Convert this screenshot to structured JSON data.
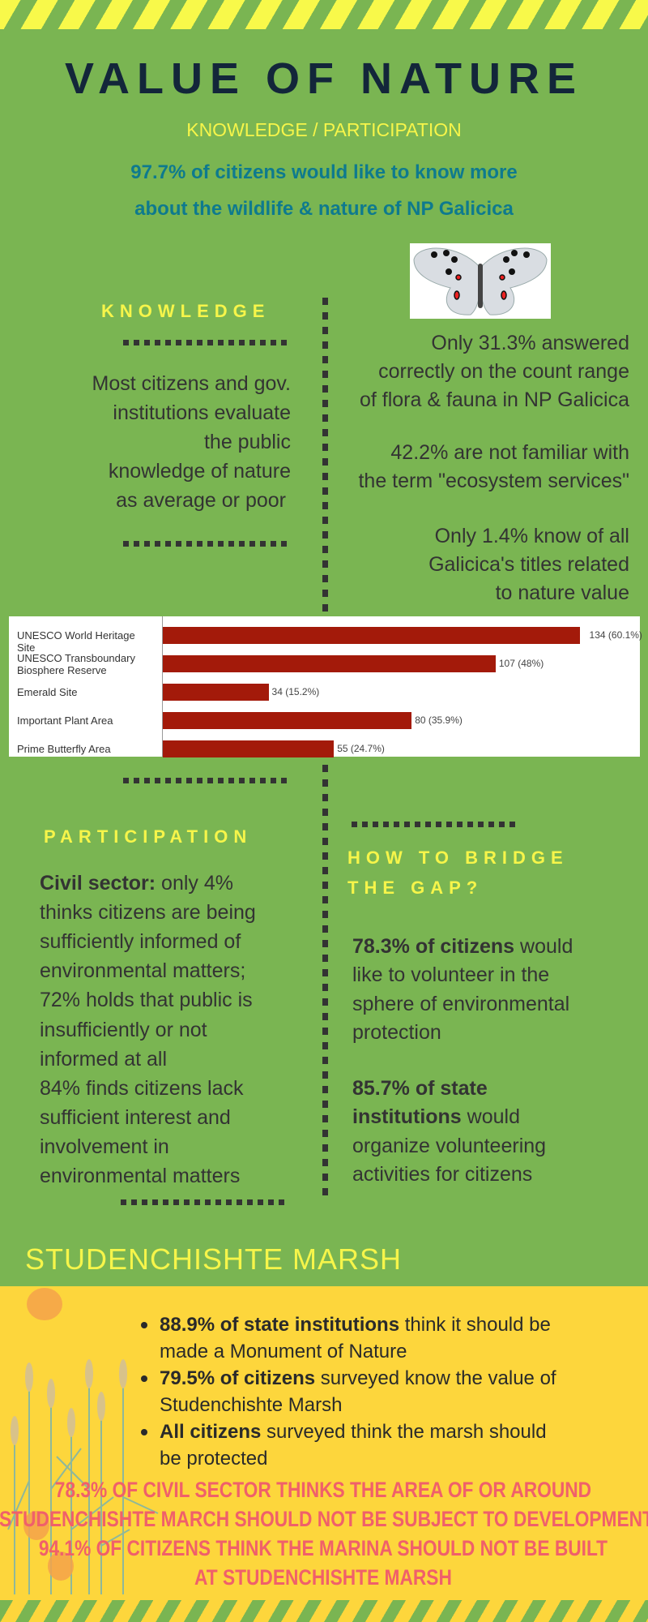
{
  "header": {
    "title": "VALUE OF NATURE",
    "subtitle": "KNOWLEDGE / PARTICIPATION",
    "lead": [
      "97.7% of citizens  would like to know more",
      "about the wildlife & nature of NP Galicica"
    ]
  },
  "knowledge": {
    "heading": "KNOWLEDGE",
    "left_lines": [
      "Most citizens and gov.",
      "institutions evaluate",
      "the public",
      "knowledge of nature",
      "as average or poor"
    ],
    "right_lines": [
      "Only 31.3% answered",
      "correctly on the count range",
      "of flora & fauna in NP Galicica",
      "42.2% are not familiar with",
      "the term \"ecosystem services\"",
      "Only 1.4% know of all",
      "Galicica's titles related",
      "to nature value"
    ]
  },
  "chart_data": {
    "type": "bar",
    "orientation": "horizontal",
    "categories": [
      "UNESCO World Heritage Site",
      "UNESCO Transboundary Biosphere Reserve",
      "Emerald Site",
      "Important Plant Area",
      "Prime Butterfly Area"
    ],
    "values": [
      134,
      107,
      34,
      80,
      55
    ],
    "labels": [
      "134 (60.1%)",
      "107 (48%)",
      "34 (15.2%)",
      "80 (35.9%)",
      "55 (24.7%)"
    ],
    "bar_color": "#a31a0a"
  },
  "participation": {
    "heading": "PARTICIPATION",
    "lines": [
      {
        "b": "Civil sector:",
        "t": " only 4%"
      },
      {
        "b": "",
        "t": "thinks citizens are being"
      },
      {
        "b": "",
        "t": "sufficiently informed of"
      },
      {
        "b": "",
        "t": "environmental matters;"
      },
      {
        "b": "",
        "t": "72% holds that public is"
      },
      {
        "b": "",
        "t": "insufficiently or not"
      },
      {
        "b": "",
        "t": "informed at  all"
      },
      {
        "b": "",
        "t": "84% finds citizens lack"
      },
      {
        "b": "",
        "t": "sufficient interest and"
      },
      {
        "b": "",
        "t": "involvement in"
      },
      {
        "b": "",
        "t": "environmental matters"
      }
    ]
  },
  "bridge": {
    "heading": [
      "HOW TO BRIDGE",
      "THE GAP?"
    ],
    "lines": [
      {
        "b": "78.3% of citizens",
        "t": " would"
      },
      {
        "b": "",
        "t": "like to volunteer in the"
      },
      {
        "b": "",
        "t": "sphere of environmental"
      },
      {
        "b": "",
        "t": "protection"
      },
      {
        "b": "85.7% of state",
        "t": ""
      },
      {
        "b": "institutions",
        "t": " would"
      },
      {
        "b": "",
        "t": "organize volunteering"
      },
      {
        "b": "",
        "t": "activities for citizens"
      }
    ]
  },
  "marsh": {
    "title": "STUDENCHISHTE MARSH",
    "bullets": [
      {
        "b": "88.9% of state institutions",
        "t": " think it should be",
        "t2": "made a Monument of Nature"
      },
      {
        "b": "79.5% of citizens",
        "t": " surveyed know the value of",
        "t2": "Studenchishte Marsh"
      },
      {
        "b": "All citizens",
        "t": " surveyed think the marsh should",
        "t2": "be protected"
      }
    ],
    "highlights": [
      "78.3% OF CIVIL SECTOR THINKS THE AREA OF OR AROUND",
      "STUDENCHISHTE MARCH SHOULD NOT BE SUBJECT TO DEVELOPMENT",
      "94.1% OF CITIZENS THINK THE MARINA SHOULD NOT BE BUILT",
      "AT STUDENCHISHTE MARSH"
    ]
  },
  "colors": {
    "green": "#7ab552",
    "yellow": "#f6f54a",
    "dark": "#13263a",
    "teal": "#0e7a8e",
    "red": "#f0606a",
    "marsh_bg": "#fdd63c"
  }
}
